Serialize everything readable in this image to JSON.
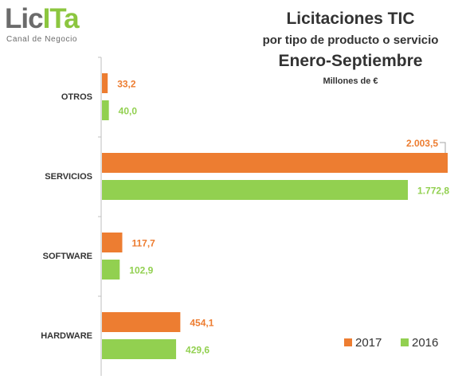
{
  "logo": {
    "word_part1": "Lic",
    "word_part2": "ITa",
    "tagline": "Canal de Negocio"
  },
  "chart_data": {
    "type": "bar",
    "orientation": "horizontal",
    "title": "Licitaciones TIC",
    "subtitle": "por tipo de producto o servicio",
    "period": "Enero-Septiembre",
    "unit": "Millones de €",
    "categories": [
      "OTROS",
      "SERVICIOS",
      "SOFTWARE",
      "HARDWARE"
    ],
    "series": [
      {
        "name": "2017",
        "color": "#ed7d31",
        "values": [
          33.2,
          2003.5,
          117.7,
          454.1
        ],
        "labels": [
          "33,2",
          "2.003,5",
          "117,7",
          "454,1"
        ]
      },
      {
        "name": "2016",
        "color": "#92d050",
        "values": [
          40.0,
          1772.8,
          102.9,
          429.6
        ],
        "labels": [
          "40,0",
          "1.772,8",
          "102,9",
          "429,6"
        ]
      }
    ],
    "xlim": [
      0,
      2003.5
    ],
    "grid": false,
    "legend_position": "bottom-right"
  }
}
